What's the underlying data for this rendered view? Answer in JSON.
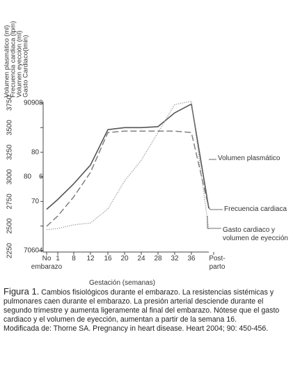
{
  "chart_data": {
    "type": "line",
    "categories": [
      "No embarazo",
      "1",
      "8",
      "12",
      "16",
      "20",
      "24",
      "28",
      "32",
      "36",
      "Post-parto"
    ],
    "xlabel": "Gestación (semanas)",
    "axes": [
      {
        "label": "Volumen plasmático (ml)",
        "ylim": [
          2250,
          3750
        ],
        "yticks": [
          2250,
          2500,
          2750,
          3000,
          3250,
          3500,
          3750
        ]
      },
      {
        "label": "Frecuencia cardiaca (lpm)",
        "ylim": [
          70,
          90
        ],
        "yticks": [
          70,
          80,
          90
        ]
      },
      {
        "label": "Volumen eyección (ml)",
        "ylim": [
          60,
          90
        ],
        "yticks": [
          60,
          70,
          80,
          90
        ]
      },
      {
        "label": "Gasto Cardiaco(lmin)",
        "ylim": [
          4,
          8
        ],
        "yticks": [
          4,
          6,
          8
        ]
      }
    ],
    "series": [
      {
        "name": "Volumen plasmático",
        "axis": 0,
        "style": "solid",
        "color": "#555555",
        "values": [
          2670,
          2770,
          2930,
          3120,
          3480,
          3500,
          3500,
          3510,
          3650,
          3740,
          2680
        ]
      },
      {
        "name": "Frecuencia cardiaca",
        "axis": 1,
        "style": "dashed",
        "color": "#777777",
        "values": [
          73.3,
          74.7,
          77.3,
          80.6,
          86,
          86.2,
          86.2,
          86.2,
          86.2,
          86,
          75.8
        ]
      },
      {
        "name": "Gasto cardiaco y volumen de eyección",
        "axis": 3,
        "style": "dotted",
        "color": "#999999",
        "values": [
          4.57,
          4.6,
          4.7,
          4.75,
          5.13,
          5.89,
          6.45,
          7.2,
          7.96,
          8.05,
          4.57
        ]
      }
    ],
    "caption": {
      "label": "Figura 1.",
      "text": "Cambios fisiológicos durante el embarazo. La resistencias sistémicas y pulmonares caen durante el embarazo. La presión arterial desciende durante el segundo trimestre y aumenta ligeramente al final del embarazo. Nótese que el gasto cardiaco y el volumen de eyección, aumentan a partir de la semana 16."
    },
    "source": "Modificada de: Thorne SA. Pregnancy in heart disease. Heart 2004; 90: 450-456."
  }
}
